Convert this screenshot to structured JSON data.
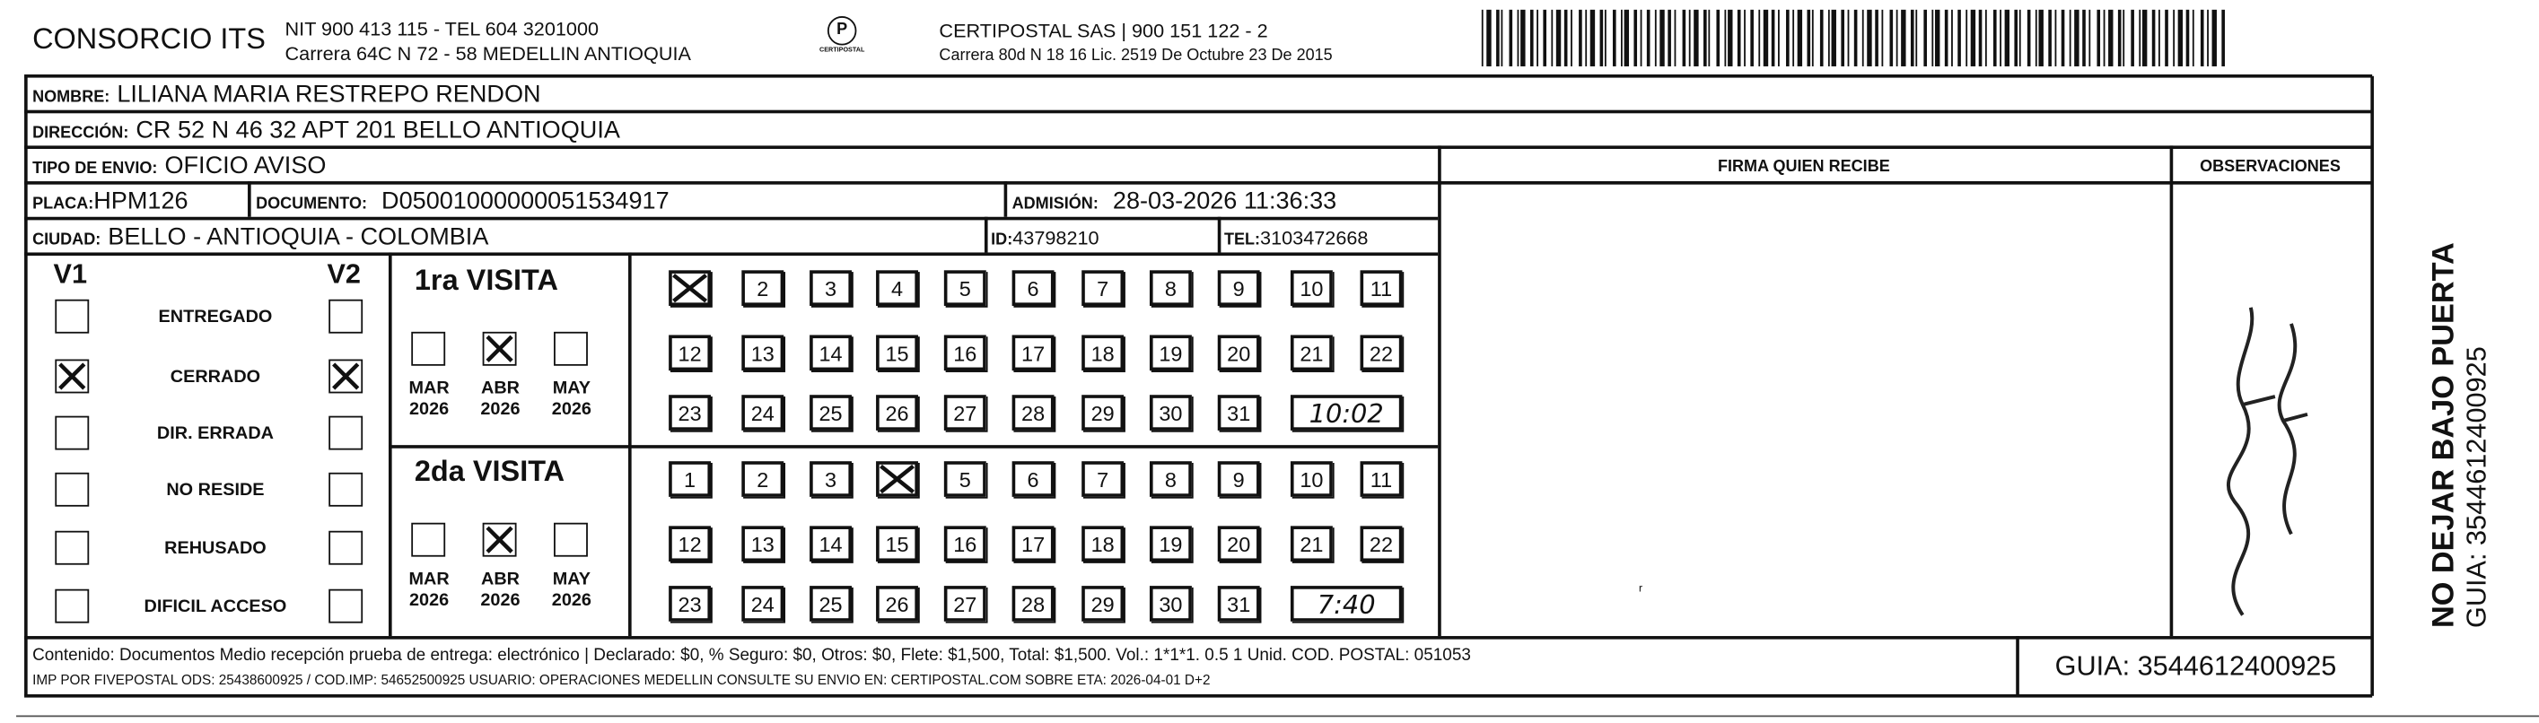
{
  "header": {
    "company": "CONSORCIO ITS",
    "nit_line": "NIT 900 413 115 - TEL 604 3201000",
    "address_line": "Carrera 64C N 72 - 58 MEDELLIN ANTIOQUIA",
    "logo_text": "CERTIPOSTAL",
    "courier_line": "CERTIPOSTAL SAS | 900 151 122 - 2",
    "courier_address": "Carrera 80d N 18 16  Lic. 2519 De Octubre 23 De 2015"
  },
  "fields": {
    "nombre_label": "NOMBRE:",
    "nombre": "LILIANA MARIA RESTREPO RENDON",
    "direccion_label": "DIRECCIÓN:",
    "direccion": "CR 52 N 46 32 APT 201 BELLO ANTIOQUIA",
    "tipo_label": "TIPO DE ENVIO:",
    "tipo": "OFICIO AVISO",
    "placa_label": "PLACA:",
    "placa": "HPM126",
    "documento_label": "DOCUMENTO:",
    "documento": "D05001000000051534917",
    "admision_label": "ADMISIÓN:",
    "admision": "28-03-2026 11:36:33",
    "ciudad_label": "CIUDAD:",
    "ciudad": "BELLO - ANTIOQUIA - COLOMBIA",
    "id_label": "ID:",
    "id": "43798210",
    "tel_label": "TEL:",
    "tel": "3103472668"
  },
  "columns": {
    "firma": "FIRMA QUIEN RECIBE",
    "observaciones": "OBSERVACIONES"
  },
  "status": {
    "v1_label": "V1",
    "v2_label": "V2",
    "options": [
      {
        "label": "ENTREGADO",
        "v1": false,
        "v2": false
      },
      {
        "label": "CERRADO",
        "v1": true,
        "v2": true
      },
      {
        "label": "DIR. ERRADA",
        "v1": false,
        "v2": false
      },
      {
        "label": "NO RESIDE",
        "v1": false,
        "v2": false
      },
      {
        "label": "REHUSADO",
        "v1": false,
        "v2": false
      },
      {
        "label": "DIFICIL ACCESO",
        "v1": false,
        "v2": false
      }
    ]
  },
  "visits": [
    {
      "title": "1ra VISITA",
      "months": [
        {
          "m": "MAR",
          "y": "2026",
          "checked": false
        },
        {
          "m": "ABR",
          "y": "2026",
          "checked": true
        },
        {
          "m": "MAY",
          "y": "2026",
          "checked": false
        }
      ],
      "marked_day": 1,
      "time": "10:02"
    },
    {
      "title": "2da VISITA",
      "months": [
        {
          "m": "MAR",
          "y": "2026",
          "checked": false
        },
        {
          "m": "ABR",
          "y": "2026",
          "checked": true
        },
        {
          "m": "MAY",
          "y": "2026",
          "checked": false
        }
      ],
      "marked_day": 4,
      "time": "7:40"
    }
  ],
  "footer": {
    "contenido": "Contenido: Documentos Medio recepción prueba de entrega: electrónico | Declarado: $0, % Seguro: $0, Otros: $0, Flete: $1,500, Total: $1,500. Vol.: 1*1*1. 0.5  1 Unid. COD. POSTAL: 051053",
    "imp": "IMP POR FIVEPOSTAL ODS: 25438600925 / COD.IMP: 54652500925 USUARIO: OPERACIONES MEDELLIN CONSULTE SU ENVIO EN: CERTIPOSTAL.COM SOBRE ETA: 2026-04-01 D+2",
    "guia": "GUIA: 3544612400925"
  },
  "side": {
    "warning": "NO DEJAR BAJO PUERTA",
    "guia": "GUIA: 3544612400925"
  }
}
